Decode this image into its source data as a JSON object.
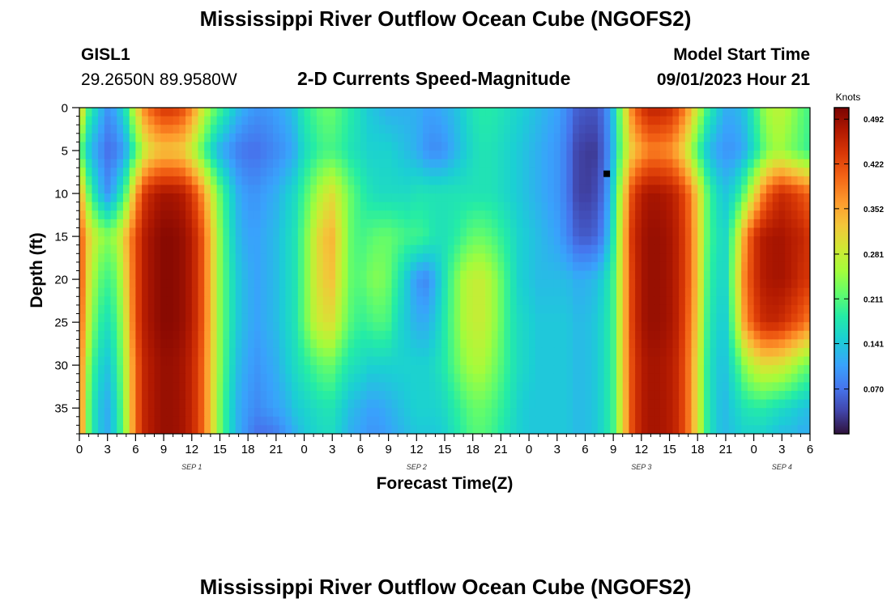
{
  "header": {
    "title": "Mississippi River Outflow Ocean Cube (NGOFS2)",
    "station_id": "GISL1",
    "station_coords": "29.2650N  89.9580W",
    "subtitle": "2-D Currents Speed-Magnitude",
    "model_start_label": "Model Start Time",
    "model_start_value": "09/01/2023 Hour 21"
  },
  "footer": {
    "title": "Mississippi River Outflow Ocean Cube (NGOFS2)"
  },
  "chart_data": {
    "type": "heatmap",
    "title": "2-D Currents Speed-Magnitude",
    "xlabel": "Forecast Time(Z)",
    "ylabel": "Depth (ft)",
    "x_range_hours": [
      0,
      78
    ],
    "y_range_ft": [
      0,
      38
    ],
    "x_tick_labels": [
      "0",
      "3",
      "6",
      "9",
      "12",
      "15",
      "18",
      "21",
      "0",
      "3",
      "6",
      "9",
      "12",
      "15",
      "18",
      "21",
      "0",
      "3",
      "6",
      "9",
      "12",
      "15",
      "18",
      "21",
      "0",
      "3",
      "6"
    ],
    "y_tick_labels": [
      "0",
      "5",
      "10",
      "15",
      "20",
      "25",
      "30",
      "35"
    ],
    "date_labels": [
      {
        "label": "SEP 1",
        "hour": 12
      },
      {
        "label": "SEP 2",
        "hour": 36
      },
      {
        "label": "SEP 3",
        "hour": 60
      },
      {
        "label": "SEP 4",
        "hour": 75
      }
    ],
    "colorbar": {
      "unit": "Knots",
      "min": 0.0,
      "max": 0.51,
      "ticks": [
        "0.492",
        "0.422",
        "0.352",
        "0.281",
        "0.211",
        "0.141",
        "0.070"
      ]
    },
    "marker": {
      "hour": 56.3,
      "depth_ft": 7.7
    },
    "column_hours": [
      0,
      1,
      2,
      3,
      4,
      5,
      6,
      7,
      8,
      9,
      10,
      11,
      12,
      13,
      14,
      15,
      16,
      17,
      18,
      19,
      20,
      21,
      22,
      23,
      24,
      25,
      26,
      27,
      28,
      29,
      30,
      31,
      32,
      33,
      34,
      35,
      36,
      37,
      38,
      39,
      40,
      41,
      42,
      43,
      44,
      45,
      46,
      47,
      48,
      49,
      50,
      51,
      52,
      53,
      54,
      55,
      56,
      57,
      58,
      59,
      60,
      61,
      62,
      63,
      64,
      65,
      66,
      67,
      68,
      69,
      70,
      71,
      72,
      73,
      74,
      75,
      76,
      77,
      78
    ],
    "row_depths_ft": [
      0,
      5,
      10,
      15,
      20,
      25,
      30,
      35,
      38
    ],
    "speed_knots": [
      [
        0.34,
        0.2,
        0.14,
        0.1,
        0.12,
        0.18,
        0.3,
        0.38,
        0.42,
        0.44,
        0.44,
        0.42,
        0.38,
        0.3,
        0.24,
        0.2,
        0.16,
        0.13,
        0.11,
        0.1,
        0.1,
        0.11,
        0.12,
        0.14,
        0.18,
        0.2,
        0.22,
        0.22,
        0.2,
        0.18,
        0.16,
        0.14,
        0.13,
        0.12,
        0.12,
        0.12,
        0.12,
        0.11,
        0.11,
        0.12,
        0.13,
        0.15,
        0.17,
        0.18,
        0.18,
        0.17,
        0.16,
        0.15,
        0.14,
        0.13,
        0.12,
        0.11,
        0.09,
        0.06,
        0.05,
        0.05,
        0.07,
        0.14,
        0.26,
        0.38,
        0.44,
        0.46,
        0.46,
        0.45,
        0.42,
        0.36,
        0.28,
        0.2,
        0.15,
        0.12,
        0.12,
        0.14,
        0.18,
        0.24,
        0.27,
        0.27,
        0.25,
        0.22,
        0.2
      ],
      [
        0.22,
        0.14,
        0.1,
        0.07,
        0.08,
        0.12,
        0.2,
        0.28,
        0.32,
        0.33,
        0.33,
        0.32,
        0.28,
        0.22,
        0.16,
        0.12,
        0.1,
        0.08,
        0.07,
        0.07,
        0.08,
        0.09,
        0.1,
        0.12,
        0.16,
        0.18,
        0.2,
        0.2,
        0.19,
        0.17,
        0.16,
        0.15,
        0.15,
        0.15,
        0.14,
        0.13,
        0.12,
        0.1,
        0.09,
        0.1,
        0.12,
        0.14,
        0.16,
        0.17,
        0.17,
        0.16,
        0.15,
        0.14,
        0.13,
        0.12,
        0.11,
        0.1,
        0.08,
        0.04,
        0.03,
        0.03,
        0.06,
        0.13,
        0.24,
        0.32,
        0.36,
        0.38,
        0.38,
        0.37,
        0.34,
        0.28,
        0.2,
        0.14,
        0.11,
        0.1,
        0.1,
        0.12,
        0.16,
        0.21,
        0.25,
        0.25,
        0.23,
        0.21,
        0.19
      ],
      [
        0.36,
        0.22,
        0.14,
        0.1,
        0.14,
        0.22,
        0.36,
        0.44,
        0.47,
        0.48,
        0.48,
        0.47,
        0.44,
        0.38,
        0.3,
        0.22,
        0.16,
        0.12,
        0.1,
        0.1,
        0.11,
        0.12,
        0.14,
        0.16,
        0.2,
        0.24,
        0.28,
        0.3,
        0.26,
        0.22,
        0.19,
        0.17,
        0.16,
        0.16,
        0.16,
        0.16,
        0.17,
        0.17,
        0.17,
        0.17,
        0.17,
        0.17,
        0.17,
        0.17,
        0.17,
        0.16,
        0.15,
        0.14,
        0.13,
        0.12,
        0.11,
        0.1,
        0.08,
        0.04,
        0.03,
        0.04,
        0.07,
        0.16,
        0.3,
        0.42,
        0.47,
        0.48,
        0.48,
        0.47,
        0.45,
        0.4,
        0.32,
        0.22,
        0.16,
        0.14,
        0.16,
        0.22,
        0.3,
        0.38,
        0.43,
        0.45,
        0.44,
        0.42,
        0.4
      ],
      [
        0.42,
        0.32,
        0.26,
        0.24,
        0.26,
        0.34,
        0.42,
        0.47,
        0.49,
        0.5,
        0.5,
        0.49,
        0.47,
        0.42,
        0.34,
        0.24,
        0.17,
        0.13,
        0.11,
        0.11,
        0.12,
        0.13,
        0.15,
        0.17,
        0.22,
        0.28,
        0.33,
        0.34,
        0.28,
        0.22,
        0.2,
        0.21,
        0.22,
        0.22,
        0.21,
        0.2,
        0.2,
        0.19,
        0.17,
        0.17,
        0.18,
        0.2,
        0.22,
        0.22,
        0.21,
        0.19,
        0.17,
        0.15,
        0.14,
        0.13,
        0.12,
        0.11,
        0.09,
        0.06,
        0.05,
        0.06,
        0.09,
        0.18,
        0.32,
        0.44,
        0.48,
        0.49,
        0.49,
        0.48,
        0.46,
        0.41,
        0.33,
        0.22,
        0.17,
        0.16,
        0.24,
        0.36,
        0.44,
        0.47,
        0.48,
        0.48,
        0.47,
        0.46,
        0.44
      ],
      [
        0.43,
        0.3,
        0.22,
        0.2,
        0.22,
        0.32,
        0.42,
        0.47,
        0.49,
        0.5,
        0.5,
        0.49,
        0.47,
        0.42,
        0.34,
        0.24,
        0.18,
        0.14,
        0.12,
        0.11,
        0.12,
        0.13,
        0.15,
        0.17,
        0.22,
        0.28,
        0.32,
        0.33,
        0.27,
        0.22,
        0.21,
        0.23,
        0.24,
        0.22,
        0.18,
        0.14,
        0.1,
        0.09,
        0.12,
        0.17,
        0.22,
        0.26,
        0.28,
        0.28,
        0.26,
        0.22,
        0.18,
        0.15,
        0.14,
        0.13,
        0.13,
        0.13,
        0.13,
        0.12,
        0.12,
        0.13,
        0.15,
        0.2,
        0.32,
        0.43,
        0.48,
        0.49,
        0.49,
        0.48,
        0.46,
        0.41,
        0.33,
        0.21,
        0.16,
        0.16,
        0.26,
        0.38,
        0.44,
        0.47,
        0.48,
        0.48,
        0.47,
        0.45,
        0.44
      ],
      [
        0.42,
        0.28,
        0.19,
        0.17,
        0.2,
        0.3,
        0.42,
        0.47,
        0.49,
        0.5,
        0.5,
        0.49,
        0.47,
        0.42,
        0.34,
        0.24,
        0.18,
        0.14,
        0.12,
        0.11,
        0.12,
        0.13,
        0.15,
        0.17,
        0.22,
        0.27,
        0.3,
        0.3,
        0.25,
        0.21,
        0.19,
        0.2,
        0.21,
        0.2,
        0.16,
        0.14,
        0.12,
        0.12,
        0.14,
        0.18,
        0.22,
        0.26,
        0.28,
        0.28,
        0.26,
        0.22,
        0.18,
        0.16,
        0.15,
        0.14,
        0.14,
        0.14,
        0.14,
        0.13,
        0.13,
        0.14,
        0.16,
        0.2,
        0.32,
        0.43,
        0.48,
        0.49,
        0.49,
        0.48,
        0.46,
        0.4,
        0.32,
        0.2,
        0.15,
        0.15,
        0.24,
        0.36,
        0.42,
        0.45,
        0.46,
        0.45,
        0.43,
        0.41,
        0.38
      ],
      [
        0.4,
        0.24,
        0.16,
        0.14,
        0.18,
        0.28,
        0.4,
        0.46,
        0.48,
        0.49,
        0.49,
        0.48,
        0.46,
        0.41,
        0.33,
        0.24,
        0.17,
        0.13,
        0.11,
        0.1,
        0.11,
        0.12,
        0.14,
        0.16,
        0.18,
        0.2,
        0.22,
        0.22,
        0.19,
        0.17,
        0.16,
        0.15,
        0.15,
        0.15,
        0.15,
        0.15,
        0.15,
        0.15,
        0.16,
        0.18,
        0.21,
        0.24,
        0.26,
        0.26,
        0.24,
        0.21,
        0.18,
        0.16,
        0.15,
        0.14,
        0.14,
        0.14,
        0.14,
        0.13,
        0.13,
        0.14,
        0.16,
        0.2,
        0.32,
        0.42,
        0.47,
        0.48,
        0.48,
        0.47,
        0.45,
        0.39,
        0.3,
        0.19,
        0.14,
        0.14,
        0.18,
        0.24,
        0.28,
        0.3,
        0.3,
        0.29,
        0.27,
        0.24,
        0.22
      ],
      [
        0.4,
        0.22,
        0.14,
        0.12,
        0.16,
        0.27,
        0.4,
        0.46,
        0.48,
        0.49,
        0.49,
        0.48,
        0.46,
        0.41,
        0.33,
        0.23,
        0.16,
        0.12,
        0.1,
        0.09,
        0.1,
        0.11,
        0.12,
        0.14,
        0.15,
        0.16,
        0.17,
        0.17,
        0.15,
        0.13,
        0.12,
        0.11,
        0.11,
        0.12,
        0.13,
        0.14,
        0.15,
        0.15,
        0.15,
        0.16,
        0.18,
        0.2,
        0.22,
        0.22,
        0.21,
        0.19,
        0.17,
        0.15,
        0.14,
        0.14,
        0.14,
        0.14,
        0.14,
        0.13,
        0.13,
        0.14,
        0.16,
        0.2,
        0.31,
        0.42,
        0.47,
        0.48,
        0.48,
        0.47,
        0.45,
        0.39,
        0.3,
        0.19,
        0.14,
        0.13,
        0.15,
        0.17,
        0.18,
        0.18,
        0.17,
        0.16,
        0.15,
        0.14,
        0.13
      ],
      [
        0.4,
        0.22,
        0.14,
        0.12,
        0.16,
        0.26,
        0.4,
        0.46,
        0.48,
        0.49,
        0.49,
        0.48,
        0.46,
        0.41,
        0.33,
        0.23,
        0.16,
        0.12,
        0.09,
        0.07,
        0.07,
        0.08,
        0.1,
        0.12,
        0.14,
        0.15,
        0.16,
        0.16,
        0.14,
        0.12,
        0.11,
        0.1,
        0.1,
        0.11,
        0.12,
        0.13,
        0.14,
        0.14,
        0.14,
        0.15,
        0.17,
        0.19,
        0.21,
        0.21,
        0.2,
        0.18,
        0.16,
        0.15,
        0.14,
        0.14,
        0.14,
        0.14,
        0.14,
        0.13,
        0.13,
        0.14,
        0.16,
        0.2,
        0.31,
        0.42,
        0.47,
        0.48,
        0.48,
        0.47,
        0.45,
        0.39,
        0.3,
        0.19,
        0.14,
        0.13,
        0.14,
        0.15,
        0.15,
        0.15,
        0.14,
        0.13,
        0.13,
        0.12,
        0.12
      ]
    ]
  }
}
